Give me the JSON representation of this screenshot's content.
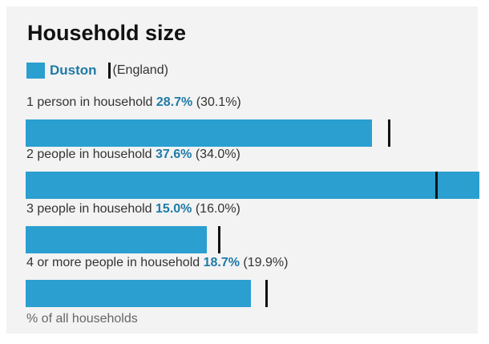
{
  "title": "Household size",
  "legend": {
    "area_label": "Duston",
    "comparison_label": "(England)"
  },
  "colors": {
    "bar": "#2a9fd0",
    "area_text": "#1f7aa6",
    "comparison_marker": "#111111"
  },
  "note": "% of all households",
  "chart_data": {
    "type": "bar",
    "orientation": "horizontal",
    "title": "Household size",
    "categories": [
      "1 person in household",
      "2 people in household",
      "3 people in household",
      "4 or more people in household"
    ],
    "series": [
      {
        "name": "Duston",
        "values": [
          28.7,
          37.6,
          15.0,
          18.7
        ]
      },
      {
        "name": "(England)",
        "values": [
          30.1,
          34.0,
          16.0,
          19.9
        ]
      }
    ],
    "value_labels": [
      "28.7%",
      "37.6%",
      "15.0%",
      "18.7%"
    ],
    "comparison_labels": [
      "(30.1%)",
      "(34.0%)",
      "(16.0%)",
      "(19.9%)"
    ],
    "xlim": [
      0,
      37.6
    ],
    "unit_note": "% of all households",
    "legend_position": "top-left",
    "grid": false
  }
}
